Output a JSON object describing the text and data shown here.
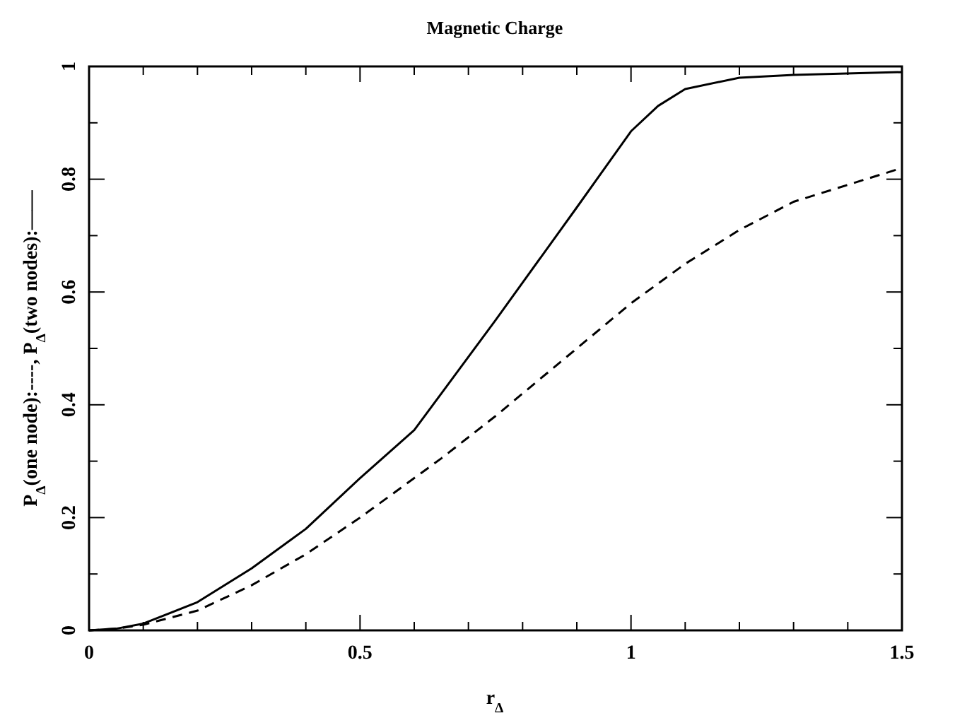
{
  "chart_data": {
    "type": "line",
    "title": "Magnetic Charge",
    "xlabel": "r$_{Δ}$",
    "ylabel": "P$_{Δ}$(one node):----, P$_{Δ}$(two nodes):——",
    "x": [
      0,
      0.05,
      0.1,
      0.2,
      0.3,
      0.4,
      0.5,
      0.6,
      0.65,
      0.75,
      0.9,
      1.0,
      1.05,
      1.1,
      1.2,
      1.3,
      1.5
    ],
    "series": [
      {
        "color": "#000000",
        "line_style": "solid",
        "values": [
          0,
          0.003,
          0.012,
          0.05,
          0.11,
          0.18,
          0.27,
          0.355,
          0.42,
          0.55,
          0.75,
          0.885,
          0.93,
          0.96,
          0.98,
          0.985,
          0.99
        ]
      },
      {
        "color": "#000000",
        "line_style": "dashed",
        "values": [
          0,
          0.003,
          0.01,
          0.035,
          0.08,
          0.135,
          0.2,
          0.27,
          0.305,
          0.38,
          0.5,
          0.58,
          0.615,
          0.65,
          0.71,
          0.76,
          0.82
        ]
      }
    ],
    "xlim": [
      0,
      1.5
    ],
    "ylim": [
      0,
      1
    ],
    "xticks": [
      0,
      {
        "value": 0.1,
        "label": null
      },
      {
        "value": 0.2,
        "label": null
      },
      {
        "value": 0.3,
        "label": null
      },
      {
        "value": 0.4,
        "label": null
      },
      0.5,
      {
        "value": 0.6,
        "label": null
      },
      {
        "value": 0.7,
        "label": null
      },
      {
        "value": 0.8,
        "label": null
      },
      {
        "value": 0.9,
        "label": null
      },
      1,
      {
        "value": 1.1,
        "label": null
      },
      {
        "value": 1.2,
        "label": null
      },
      {
        "value": 1.3,
        "label": null
      },
      {
        "value": 1.4,
        "label": null
      },
      1.5
    ],
    "yticks": [
      0,
      {
        "value": 0.1,
        "label": null
      },
      0.2,
      {
        "value": 0.3,
        "label": null
      },
      0.4,
      {
        "value": 0.5,
        "label": null
      },
      0.6,
      {
        "value": 0.7,
        "label": null
      },
      0.8,
      {
        "value": 0.9,
        "label": null
      },
      1
    ],
    "grid": false
  }
}
